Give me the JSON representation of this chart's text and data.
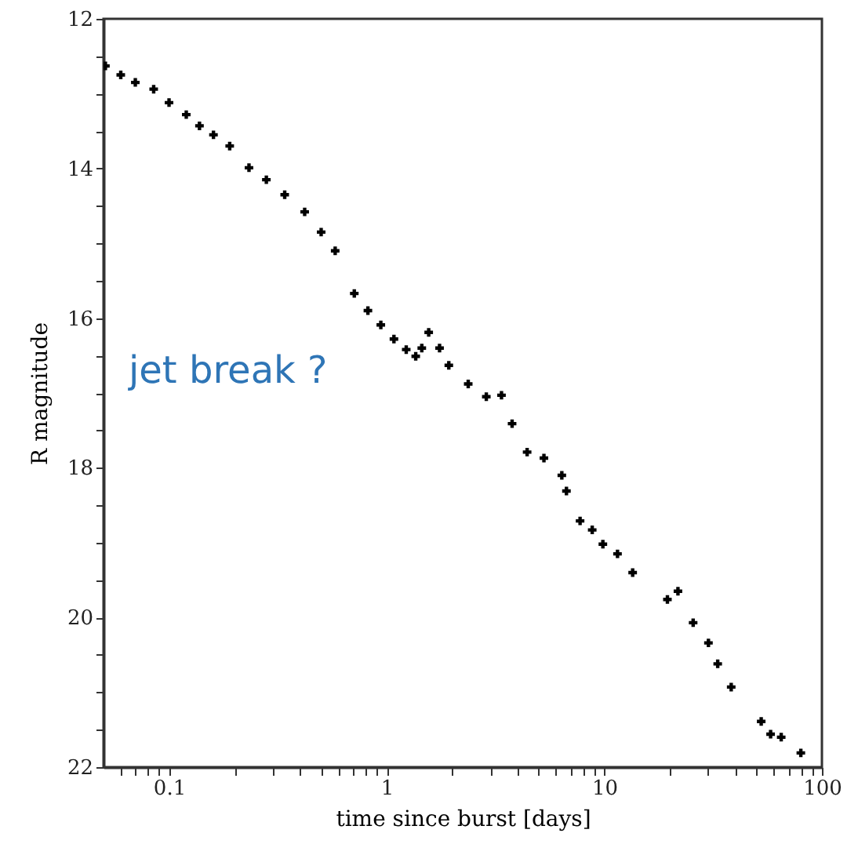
{
  "chart_data": {
    "type": "scatter",
    "xlabel": "time since burst [days]",
    "ylabel": "R magnitude",
    "annotations": [
      "jet break ?"
    ],
    "log": "x",
    "grid": false,
    "marker": "cross",
    "xlim": [
      0.05,
      100
    ],
    "ylim": [
      22,
      12
    ],
    "xticks": [
      {
        "value": 0.06,
        "label": null
      },
      {
        "value": 0.07,
        "label": null
      },
      {
        "value": 0.08,
        "label": null
      },
      {
        "value": 0.09,
        "label": null
      },
      0.1,
      {
        "value": 0.2,
        "label": null
      },
      {
        "value": 0.3,
        "label": null
      },
      {
        "value": 0.4,
        "label": null
      },
      {
        "value": 0.5,
        "label": null
      },
      {
        "value": 0.6,
        "label": null
      },
      {
        "value": 0.7,
        "label": null
      },
      {
        "value": 0.8,
        "label": null
      },
      {
        "value": 0.9,
        "label": null
      },
      1,
      {
        "value": 2,
        "label": null
      },
      {
        "value": 3,
        "label": null
      },
      {
        "value": 4,
        "label": null
      },
      {
        "value": 5,
        "label": null
      },
      {
        "value": 6,
        "label": null
      },
      {
        "value": 7,
        "label": null
      },
      {
        "value": 8,
        "label": null
      },
      {
        "value": 9,
        "label": null
      },
      10,
      {
        "value": 20,
        "label": null
      },
      {
        "value": 30,
        "label": null
      },
      {
        "value": 40,
        "label": null
      },
      {
        "value": 50,
        "label": null
      },
      {
        "value": 60,
        "label": null
      },
      {
        "value": 70,
        "label": null
      },
      {
        "value": 80,
        "label": null
      },
      {
        "value": 90,
        "label": null
      },
      100
    ],
    "yticks": [
      12,
      {
        "value": 12.5,
        "label": null
      },
      {
        "value": 13,
        "label": null
      },
      {
        "value": 13.5,
        "label": null
      },
      14,
      {
        "value": 14.5,
        "label": null
      },
      {
        "value": 15,
        "label": null
      },
      {
        "value": 15.5,
        "label": null
      },
      16,
      {
        "value": 16.5,
        "label": null
      },
      {
        "value": 17,
        "label": null
      },
      {
        "value": 17.5,
        "label": null
      },
      18,
      {
        "value": 18.5,
        "label": null
      },
      {
        "value": 19,
        "label": null
      },
      {
        "value": 19.5,
        "label": null
      },
      20,
      {
        "value": 20.5,
        "label": null
      },
      {
        "value": 21,
        "label": null
      },
      {
        "value": 21.5,
        "label": null
      },
      22
    ],
    "series": [
      {
        "color": "#000000",
        "x": [
          0.051,
          0.06,
          0.07,
          0.085,
          0.1,
          0.12,
          0.138,
          0.16,
          0.19,
          0.233,
          0.28,
          0.34,
          0.42,
          0.5,
          0.58,
          0.71,
          0.82,
          0.94,
          1.08,
          1.23,
          1.36,
          1.45,
          1.56,
          1.75,
          1.93,
          2.37,
          2.87,
          3.37,
          3.77,
          4.42,
          5.28,
          6.38,
          6.7,
          7.74,
          8.8,
          9.85,
          11.5,
          13.5,
          19.5,
          21.8,
          25.6,
          30.1,
          33.2,
          38.3,
          52.6,
          58.1,
          65,
          80
        ],
        "values": [
          12.63,
          12.75,
          12.85,
          12.94,
          13.12,
          13.28,
          13.43,
          13.55,
          13.7,
          13.99,
          14.15,
          14.35,
          14.58,
          14.85,
          15.1,
          15.67,
          15.9,
          16.09,
          16.28,
          16.42,
          16.51,
          16.4,
          16.19,
          16.4,
          16.63,
          16.88,
          17.05,
          17.03,
          17.41,
          17.79,
          17.87,
          18.1,
          18.31,
          18.71,
          18.83,
          19.02,
          19.15,
          19.4,
          19.76,
          19.65,
          20.07,
          20.34,
          20.62,
          20.93,
          21.39,
          21.56,
          21.6,
          21.81
        ]
      }
    ]
  }
}
